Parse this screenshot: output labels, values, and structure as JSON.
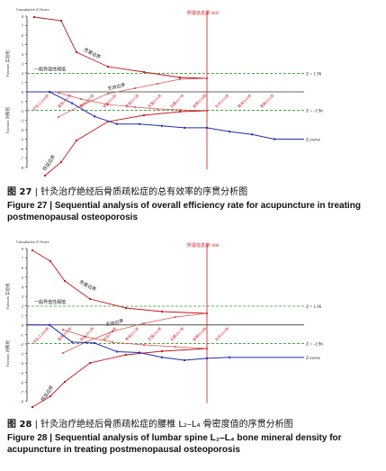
{
  "figures": [
    {
      "number_cn": "图 27",
      "caption_cn": "针灸治疗绝经后骨质疏松症的总有效率的序贯分析图",
      "caption_en_label": "Figure 27",
      "caption_en": "Sequential analysis of overall efficiency rate for acupuncture in treating postmenopausal osteoporosis",
      "chart_data": {
        "type": "line",
        "title": "",
        "ylabel": "Cumulative Z-Score",
        "y_top_label": "Favours 实验组",
        "y_bottom_label": "Favours 对照组",
        "ylim": [
          -8,
          8
        ],
        "yticks": [
          8,
          7,
          6,
          5,
          4,
          3,
          2,
          1,
          0,
          -1,
          -2,
          -3,
          -4,
          -5,
          -6,
          -7,
          -8
        ],
        "required_info_label": "所需信息量=845",
        "conventional_label": "一般界值性阈值",
        "upper_boundary_label": "危害边界",
        "futility_label": "无效边界",
        "lower_boundary_label": "获益边界",
        "z_upper_label": "Z = 1.96",
        "z_lower_label": "Z = -1.96",
        "z_curve_label": "Z-curve",
        "x_studies": [
          "邓长江2009年",
          "陈军2011年",
          "杨光2013年",
          "张远2014年",
          "李旭2015年",
          "王强2016年",
          "刘建2017年",
          "赵明2018年",
          "孙华2019年",
          "周涛2020年",
          "吴斌2021年"
        ],
        "series": [
          {
            "name": "Z-curve",
            "values": [
              0,
              -1.2,
              -2.6,
              -3.4,
              -3.4,
              -3.6,
              -3.8,
              -3.8,
              -4.2,
              -4.5,
              -5.0
            ]
          }
        ]
      }
    },
    {
      "number_cn": "图 28",
      "caption_cn": "针灸治疗绝经后骨质疏松症的腰椎 L₂–L₄ 骨密度值的序贯分析图",
      "caption_en_label": "Figure 28",
      "caption_en": "Sequential analysis of lumbar spine L₂–L₄ bone mineral density for acupuncture in treating postmenopausal osteoporosis",
      "chart_data": {
        "type": "line",
        "title": "",
        "ylabel": "Cumulative Z-Score",
        "y_top_label": "Favours 实验组",
        "y_bottom_label": "Favours 对照组",
        "ylim": [
          -8,
          8
        ],
        "yticks": [
          8,
          7,
          6,
          5,
          4,
          3,
          2,
          1,
          0,
          -1,
          -2,
          -3,
          -4,
          -5,
          -6,
          -7,
          -8
        ],
        "required_info_label": "所需信息量=468",
        "conventional_label": "一般界值性阈值",
        "upper_boundary_label": "危害边界",
        "futility_label": "无效边界",
        "lower_boundary_label": "获益边界",
        "z_upper_label": "Z = 1.96",
        "z_lower_label": "Z = -1.96",
        "z_curve_label": "Z-curve",
        "x_studies": [
          "邓长江2009年",
          "陈军2011年",
          "杨光2013年",
          "张远2014年",
          "李旭2015年",
          "王强2016年",
          "刘建2017年",
          "赵明2018年",
          "孙华2019年"
        ],
        "series": [
          {
            "name": "Z-curve",
            "values": [
              0,
              -1.8,
              -1.9,
              -2.8,
              -2.9,
              -3.4,
              -3.7,
              -3.5,
              -3.4
            ]
          }
        ]
      }
    }
  ],
  "colors": {
    "boundary": "#c8161d",
    "zcurve": "#1f2bb8",
    "threshold": "#2e9b2e",
    "futility": "#d9534f",
    "axis": "#333333"
  }
}
